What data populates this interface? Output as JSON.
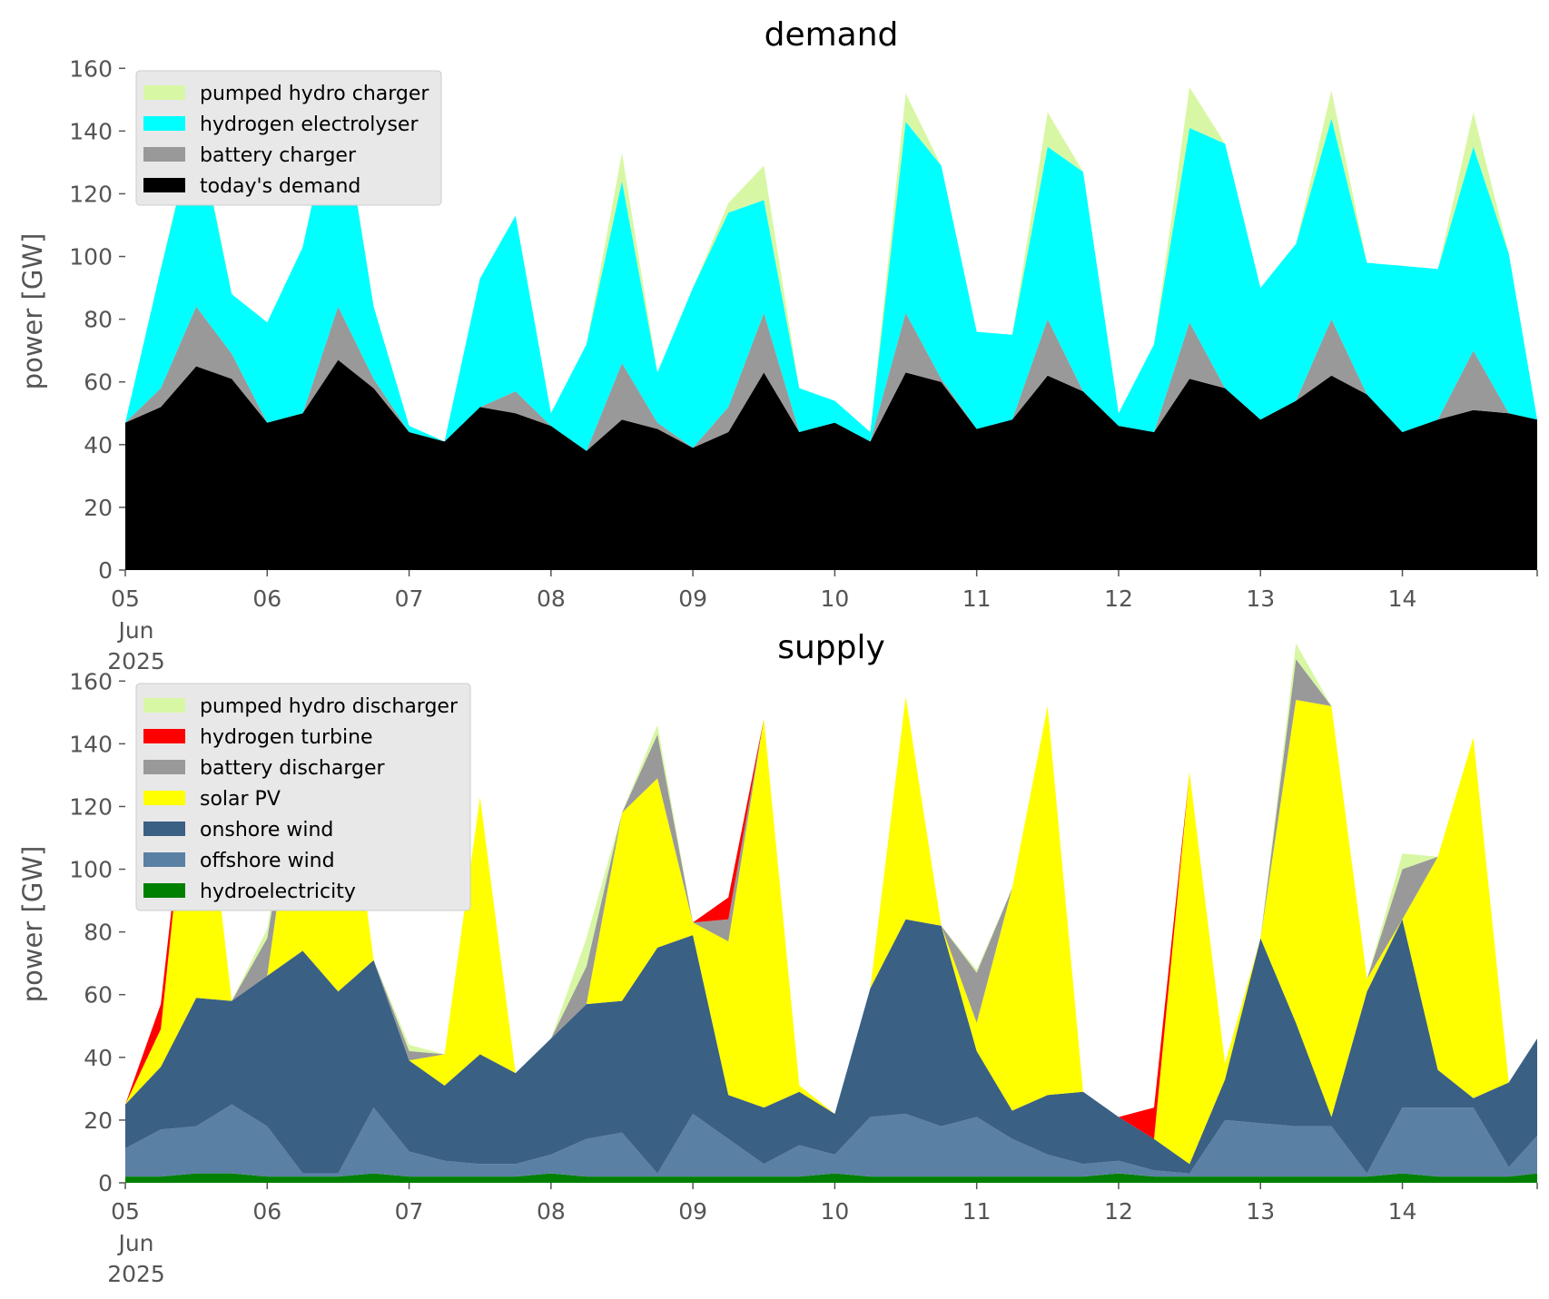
{
  "chart_data": [
    {
      "type": "area",
      "stacked": true,
      "title": "demand",
      "xlabel": "",
      "ylabel": "power [GW]",
      "ylim": [
        0,
        165
      ],
      "yticks": [
        0,
        20,
        40,
        60,
        80,
        100,
        120,
        140,
        160
      ],
      "xlim": [
        0,
        9.95
      ],
      "x_tick_values": [
        0,
        1,
        2,
        3,
        4,
        5,
        6,
        7,
        8,
        9
      ],
      "x_tick_labels": [
        "05",
        "06",
        "07",
        "08",
        "09",
        "10",
        "11",
        "12",
        "13",
        "14"
      ],
      "x_tick_sublabels": [
        "Jun",
        "2025"
      ],
      "grid": false,
      "legend_position": "top-left",
      "legend_order": [
        "pumped hydro charger",
        "hydrogen electrolyser",
        "battery charger",
        "today's demand"
      ],
      "x": [
        0,
        0.25,
        0.5,
        0.75,
        1,
        1.25,
        1.5,
        1.75,
        2,
        2.25,
        2.5,
        2.75,
        3,
        3.25,
        3.5,
        3.75,
        4,
        4.25,
        4.5,
        4.75,
        5,
        5.25,
        5.5,
        5.75,
        6,
        6.25,
        6.5,
        6.75,
        7,
        7.25,
        7.5,
        7.75,
        8,
        8.25,
        8.5,
        8.75,
        9,
        9.25,
        9.5,
        9.75,
        9.95
      ],
      "series": [
        {
          "name": "today's demand",
          "color": "#000000",
          "values": [
            47,
            52,
            65,
            61,
            47,
            50,
            67,
            58,
            44,
            41,
            52,
            50,
            46,
            38,
            48,
            45,
            39,
            44,
            63,
            44,
            47,
            41,
            63,
            60,
            45,
            48,
            62,
            57,
            46,
            44,
            61,
            58,
            48,
            54,
            62,
            56,
            44,
            48,
            51,
            50,
            48
          ]
        },
        {
          "name": "battery charger",
          "color": "#999999",
          "values": [
            0,
            6,
            19,
            8,
            0,
            0,
            17,
            3,
            0,
            0,
            0,
            7,
            0,
            0,
            18,
            2,
            0,
            8,
            19,
            0,
            0,
            0,
            19,
            1,
            0,
            0,
            18,
            0,
            0,
            0,
            18,
            0,
            0,
            0,
            18,
            0,
            0,
            0,
            19,
            0,
            0
          ]
        },
        {
          "name": "hydrogen electrolyser",
          "color": "#00ffff",
          "values": [
            0,
            38,
            59,
            19,
            32,
            53,
            71,
            23,
            2,
            0,
            41,
            56,
            4,
            34,
            58,
            16,
            51,
            62,
            36,
            14,
            7,
            3,
            61,
            68,
            31,
            27,
            55,
            70,
            4,
            28,
            62,
            78,
            42,
            50,
            64,
            42,
            53,
            48,
            65,
            51,
            0
          ]
        },
        {
          "name": "pumped hydro charger",
          "color": "#d8f7a4",
          "values": [
            0,
            0,
            2,
            0,
            0,
            0,
            1,
            0,
            0,
            0,
            0,
            0,
            0,
            0,
            9,
            0,
            0,
            3,
            11,
            0,
            0,
            0,
            9,
            0,
            0,
            0,
            11,
            0,
            0,
            0,
            13,
            0,
            0,
            0,
            9,
            0,
            0,
            0,
            11,
            0,
            0
          ]
        }
      ]
    },
    {
      "type": "area",
      "stacked": true,
      "title": "supply",
      "xlabel": "",
      "ylabel": "power [GW]",
      "ylim": [
        0,
        165
      ],
      "yticks": [
        0,
        20,
        40,
        60,
        80,
        100,
        120,
        140,
        160
      ],
      "xlim": [
        0,
        9.95
      ],
      "x_tick_values": [
        0,
        1,
        2,
        3,
        4,
        5,
        6,
        7,
        8,
        9
      ],
      "x_tick_labels": [
        "05",
        "06",
        "07",
        "08",
        "09",
        "10",
        "11",
        "12",
        "13",
        "14"
      ],
      "x_tick_sublabels": [
        "Jun",
        "2025"
      ],
      "grid": false,
      "legend_position": "top-left",
      "legend_order": [
        "pumped hydro discharger",
        "hydrogen turbine",
        "battery discharger",
        "solar PV",
        "onshore wind",
        "offshore wind",
        "hydroelectricity"
      ],
      "x": [
        0,
        0.25,
        0.5,
        0.75,
        1,
        1.25,
        1.5,
        1.75,
        2,
        2.25,
        2.5,
        2.75,
        3,
        3.25,
        3.5,
        3.75,
        4,
        4.25,
        4.5,
        4.75,
        5,
        5.25,
        5.5,
        5.75,
        6,
        6.25,
        6.5,
        6.75,
        7,
        7.25,
        7.5,
        7.75,
        8,
        8.25,
        8.5,
        8.75,
        9,
        9.25,
        9.5,
        9.75,
        9.95
      ],
      "series": [
        {
          "name": "hydroelectricity",
          "color": "#008000",
          "values": [
            2,
            2,
            3,
            3,
            2,
            2,
            2,
            3,
            2,
            2,
            2,
            2,
            3,
            2,
            2,
            2,
            2,
            2,
            2,
            2,
            3,
            2,
            2,
            2,
            2,
            2,
            2,
            2,
            3,
            2,
            2,
            2,
            2,
            2,
            2,
            2,
            3,
            2,
            2,
            2,
            3
          ]
        },
        {
          "name": "offshore wind",
          "color": "#5a80a3",
          "values": [
            9,
            15,
            15,
            22,
            16,
            1,
            1,
            21,
            8,
            5,
            4,
            4,
            6,
            12,
            14,
            1,
            20,
            12,
            4,
            10,
            6,
            19,
            20,
            16,
            19,
            12,
            7,
            4,
            4,
            2,
            1,
            18,
            17,
            16,
            16,
            1,
            21,
            22,
            22,
            3,
            12
          ]
        },
        {
          "name": "onshore wind",
          "color": "#3a6084",
          "values": [
            14,
            20,
            41,
            33,
            48,
            71,
            58,
            47,
            29,
            24,
            35,
            29,
            37,
            43,
            42,
            72,
            57,
            14,
            18,
            17,
            13,
            41,
            62,
            64,
            21,
            9,
            19,
            23,
            14,
            10,
            3,
            13,
            59,
            33,
            3,
            58,
            60,
            12,
            3,
            27,
            31
          ]
        },
        {
          "name": "solar PV",
          "color": "#ffff00",
          "values": [
            0,
            12,
            98,
            0,
            0,
            72,
            96,
            0,
            0,
            10,
            82,
            0,
            0,
            0,
            60,
            54,
            4,
            49,
            124,
            2,
            0,
            0,
            71,
            0,
            9,
            71,
            124,
            0,
            0,
            0,
            125,
            5,
            0,
            103,
            131,
            4,
            0,
            68,
            115,
            0,
            0
          ]
        },
        {
          "name": "battery discharger",
          "color": "#999999",
          "values": [
            0,
            0,
            0,
            0,
            12,
            0,
            0,
            0,
            3,
            0,
            0,
            0,
            0,
            12,
            0,
            14,
            0,
            7,
            0,
            0,
            0,
            0,
            0,
            0,
            16,
            0,
            0,
            0,
            0,
            0,
            0,
            0,
            0,
            13,
            0,
            0,
            16,
            0,
            0,
            0,
            0
          ]
        },
        {
          "name": "hydrogen turbine",
          "color": "#ff0000",
          "values": [
            0,
            8,
            0,
            0,
            0,
            0,
            0,
            0,
            0,
            0,
            0,
            0,
            0,
            0,
            0,
            0,
            0,
            7,
            0,
            0,
            0,
            0,
            0,
            0,
            0,
            0,
            0,
            0,
            0,
            10,
            0,
            0,
            0,
            0,
            0,
            0,
            0,
            0,
            0,
            0,
            0
          ]
        },
        {
          "name": "pumped hydro discharger",
          "color": "#d8f7a4",
          "values": [
            0,
            0,
            0,
            0,
            3,
            0,
            0,
            0,
            2,
            0,
            0,
            0,
            0,
            9,
            0,
            3,
            0,
            0,
            0,
            0,
            0,
            0,
            0,
            0,
            1,
            0,
            0,
            0,
            0,
            0,
            0,
            0,
            0,
            5,
            0,
            0,
            5,
            0,
            0,
            0,
            0
          ]
        }
      ]
    }
  ]
}
